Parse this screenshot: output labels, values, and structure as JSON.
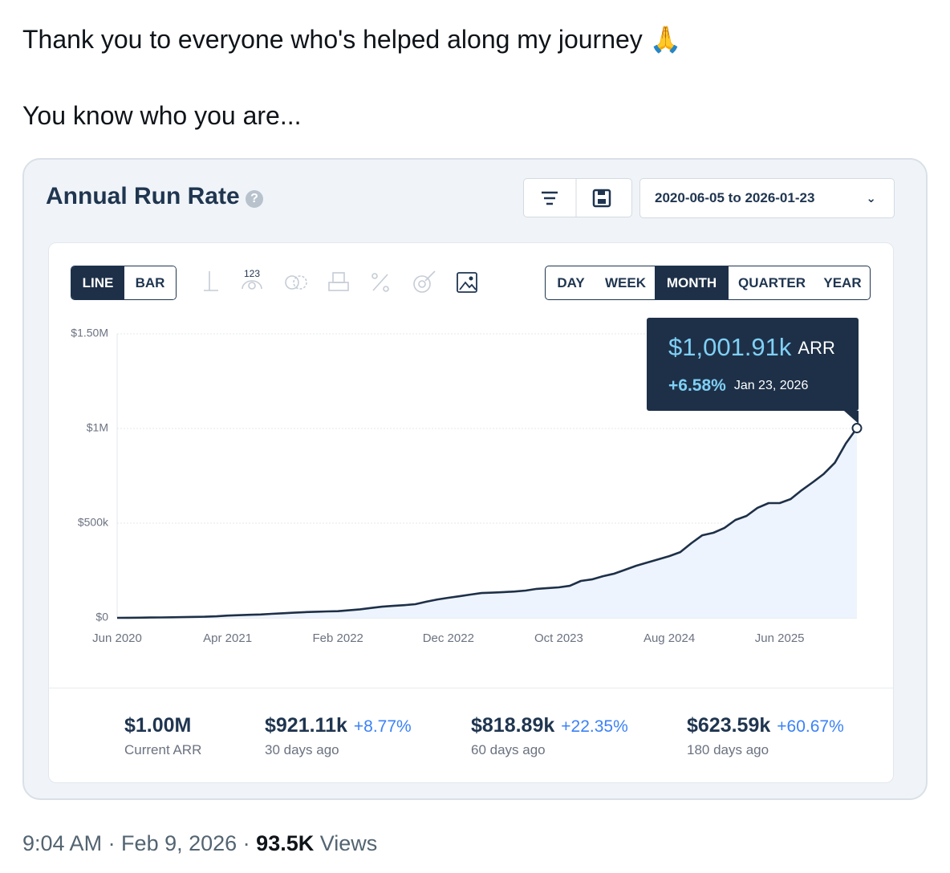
{
  "tweet": {
    "lines": [
      "Thank you to everyone who's helped along my journey 🙏",
      "You know who you are..."
    ],
    "meta": "9:04 AM · Feb 9, 2026 · ",
    "views": "93.5K",
    "views_label": "Views"
  },
  "widget": {
    "title": "Annual Run Rate",
    "date_range": "2020-06-05 to 2026-01-23",
    "chart_modes": [
      "LINE",
      "BAR"
    ],
    "tool_label": "123",
    "periods": [
      "DAY",
      "WEEK",
      "MONTH",
      "QUARTER",
      "YEAR"
    ],
    "tooltip": {
      "value": "$1,001.91k",
      "unit": "ARR",
      "change": "+6.58%",
      "date": "Jan 23, 2026"
    },
    "stats": [
      {
        "value": "$1.00M",
        "change": null,
        "label": "Current ARR"
      },
      {
        "value": "$921.11k",
        "change": "+8.77%",
        "label": "30 days ago"
      },
      {
        "value": "$818.89k",
        "change": "+22.35%",
        "label": "60 days ago"
      },
      {
        "value": "$623.59k",
        "change": "+60.67%",
        "label": "180 days ago"
      }
    ]
  },
  "chart_data": {
    "type": "line",
    "color": "#1e3048",
    "fill": "#eef4fd",
    "grid": true,
    "x": [
      "2020-06",
      "2020-07",
      "2020-08",
      "2020-09",
      "2020-10",
      "2020-11",
      "2020-12",
      "2021-01",
      "2021-02",
      "2021-03",
      "2021-04",
      "2021-05",
      "2021-06",
      "2021-07",
      "2021-08",
      "2021-09",
      "2021-10",
      "2021-11",
      "2021-12",
      "2022-01",
      "2022-02",
      "2022-03",
      "2022-04",
      "2022-05",
      "2022-06",
      "2022-07",
      "2022-08",
      "2022-09",
      "2022-10",
      "2022-11",
      "2022-12",
      "2023-01",
      "2023-02",
      "2023-03",
      "2023-04",
      "2023-05",
      "2023-06",
      "2023-07",
      "2023-08",
      "2023-09",
      "2023-10",
      "2023-11",
      "2023-12",
      "2024-01",
      "2024-02",
      "2024-03",
      "2024-04",
      "2024-05",
      "2024-06",
      "2024-07",
      "2024-08",
      "2024-09",
      "2024-10",
      "2024-11",
      "2024-12",
      "2025-01",
      "2025-02",
      "2025-03",
      "2025-04",
      "2025-05",
      "2025-06",
      "2025-07",
      "2025-08",
      "2025-09",
      "2025-10",
      "2025-11",
      "2025-12",
      "2026-01"
    ],
    "values": [
      0,
      500,
      1000,
      1500,
      2000,
      3000,
      4000,
      5000,
      6000,
      8000,
      12000,
      14000,
      16000,
      18000,
      21000,
      24000,
      27000,
      30000,
      32000,
      34000,
      35000,
      40000,
      45000,
      52000,
      59000,
      63000,
      67000,
      72000,
      85000,
      97000,
      106000,
      114000,
      123000,
      131000,
      133000,
      136000,
      139000,
      144000,
      153000,
      157000,
      161000,
      169000,
      195000,
      203000,
      220000,
      233000,
      254000,
      275000,
      292000,
      309000,
      326000,
      347000,
      394000,
      436000,
      449000,
      475000,
      517000,
      538000,
      581000,
      606000,
      606000,
      627000,
      674000,
      716000,
      760000,
      819000,
      921000,
      1001910
    ],
    "ylim": [
      0,
      1500000
    ],
    "yticks": [
      {
        "value": 0,
        "label": "$0"
      },
      {
        "value": 500000,
        "label": "$500k"
      },
      {
        "value": 1000000,
        "label": "$1M"
      },
      {
        "value": 1500000,
        "label": "$1.50M"
      }
    ],
    "xticks": [
      {
        "value": "2020-06",
        "label": "Jun 2020"
      },
      {
        "value": "2021-04",
        "label": "Apr 2021"
      },
      {
        "value": "2022-02",
        "label": "Feb 2022"
      },
      {
        "value": "2022-12",
        "label": "Dec 2022"
      },
      {
        "value": "2023-10",
        "label": "Oct 2023"
      },
      {
        "value": "2024-08",
        "label": "Aug 2024"
      },
      {
        "value": "2025-06",
        "label": "Jun 2025"
      }
    ]
  }
}
